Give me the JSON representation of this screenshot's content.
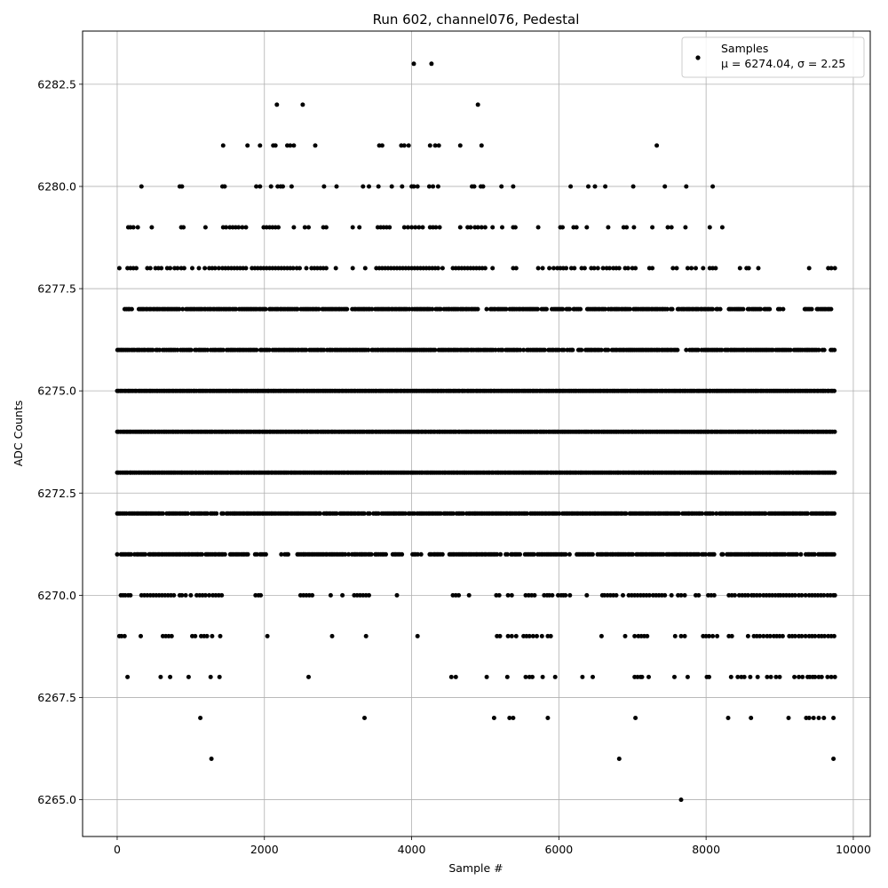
{
  "chart_data": {
    "type": "scatter",
    "title": "Run 602, channel076, Pedestal",
    "xlabel": "Sample #",
    "ylabel": "ADC Counts",
    "xlim": [
      -470,
      10230
    ],
    "ylim": [
      6264.1,
      6283.8
    ],
    "x_ticks": [
      "0",
      "2000",
      "4000",
      "6000",
      "8000",
      "10000"
    ],
    "x_tick_values": [
      0,
      2000,
      4000,
      6000,
      8000,
      10000
    ],
    "y_ticks": [
      "6265.0",
      "6267.5",
      "6270.0",
      "6272.5",
      "6275.0",
      "6277.5",
      "6280.0",
      "6282.5"
    ],
    "y_tick_values": [
      6265.0,
      6267.5,
      6270.0,
      6272.5,
      6275.0,
      6277.5,
      6280.0,
      6282.5
    ],
    "grid": true,
    "legend_position": "top-right",
    "marker_color": "#000000",
    "sample_count": 9750,
    "series": [
      {
        "name": "Samples",
        "stat_label": "μ = 6274.04, σ = 2.25",
        "levels": [
          {
            "y": 6283,
            "x": [
              4030,
              4270
            ]
          },
          {
            "y": 6282,
            "x": [
              2170,
              2520,
              4900
            ]
          },
          {
            "y": 6281,
            "x": [
              1440,
              1770,
              1940,
              2120,
              2150,
              2310,
              2350,
              2400,
              2690,
              3560,
              3600,
              3860,
              3900,
              3960,
              4250,
              4320,
              4370,
              4660,
              4950,
              7330
            ]
          },
          {
            "y": 6280,
            "x": [
              330,
              850,
              880,
              1430,
              1460,
              1890,
              1940,
              2090,
              2180,
              2220,
              2250,
              2370,
              2810,
              2980,
              3340,
              3420,
              3550,
              3730,
              3870,
              4000,
              4030,
              4080,
              4240,
              4290,
              4360,
              4820,
              4850,
              4940,
              4970,
              5220,
              5380,
              6160,
              6400,
              6490,
              6630,
              7010,
              7440,
              7730,
              8090
            ]
          },
          {
            "y": 6279,
            "x": [
              150,
              180,
              220,
              280,
              470,
              870,
              900,
              1200,
              1440,
              1480,
              1530,
              1570,
              1610,
              1650,
              1700,
              1750,
              1990,
              2030,
              2070,
              2110,
              2150,
              2190,
              2400,
              2550,
              2600,
              2800,
              2840,
              3200,
              3290,
              3540,
              3580,
              3620,
              3660,
              3700,
              3900,
              3950,
              4000,
              4050,
              4100,
              4150,
              4250,
              4290,
              4330,
              4380,
              4660,
              4760,
              4800,
              4860,
              4900,
              4950,
              5000,
              5100,
              5230,
              5380,
              5410,
              5720,
              6020,
              6050,
              6200,
              6240,
              6380,
              6670,
              6880,
              6920,
              7020,
              7270,
              7480,
              7530,
              7720,
              8050,
              8220
            ]
          },
          {
            "y": 6278,
            "x": [
              30,
              140,
              180,
              220,
              260,
              410,
              450,
              520,
              560,
              600,
              680,
              720,
              780,
              820,
              870,
              910,
              1020,
              1110,
              1190,
              1250,
              1290,
              1330,
              1380,
              1430,
              1470,
              1510,
              1550,
              1590,
              1630,
              1670,
              1710,
              1750,
              1830,
              1870,
              1910,
              1950,
              1990,
              2030,
              2070,
              2110,
              2150,
              2190,
              2230,
              2270,
              2310,
              2350,
              2390,
              2440,
              2480,
              2570,
              2640,
              2680,
              2720,
              2760,
              2800,
              2840,
              2970,
              3200,
              3370,
              3520,
              3560,
              3600,
              3640,
              3680,
              3720,
              3760,
              3800,
              3840,
              3880,
              3920,
              3960,
              4000,
              4040,
              4080,
              4120,
              4160,
              4200,
              4240,
              4280,
              4320,
              4360,
              4420,
              4560,
              4600,
              4640,
              4680,
              4720,
              4760,
              4800,
              4840,
              4880,
              4920,
              4960,
              5000,
              5100,
              5380,
              5420,
              5720,
              5780,
              5870,
              5930,
              5980,
              6020,
              6060,
              6100,
              6170,
              6210,
              6310,
              6350,
              6440,
              6480,
              6530,
              6600,
              6650,
              6690,
              6740,
              6780,
              6820,
              6900,
              6940,
              7000,
              7040,
              7230,
              7270,
              7550,
              7600,
              7750,
              7800,
              7860,
              7960,
              8050,
              8090,
              8130,
              8460,
              8550,
              8580,
              8710,
              9400,
              9660,
              9700,
              9750
            ]
          },
          {
            "y": 6277,
            "gaps": [
              [
                210,
                280
              ],
              [
                3140,
                3190
              ],
              [
                4920,
                5010
              ],
              [
                5840,
                5900
              ],
              [
                7550,
                7590
              ],
              [
                8200,
                8300
              ],
              [
                8520,
                8560
              ],
              [
                8870,
                8960
              ],
              [
                9100,
                9330
              ],
              [
                9450,
                9500
              ]
            ],
            "range": [
              100,
              9720
            ]
          },
          {
            "y": 6276,
            "gaps": [
              [
                7630,
                7680
              ],
              [
                9620,
                9680
              ]
            ],
            "range": [
              0,
              9750
            ]
          },
          {
            "y": 6275,
            "gaps": [],
            "range": [
              0,
              9750
            ]
          },
          {
            "y": 6274,
            "gaps": [],
            "range": [
              0,
              9750
            ]
          },
          {
            "y": 6273,
            "gaps": [],
            "range": [
              0,
              9750
            ]
          },
          {
            "y": 6272,
            "gaps": [],
            "range": [
              0,
              9750
            ]
          },
          {
            "y": 6271,
            "gaps": [
              [
                1500,
                1530
              ],
              [
                1800,
                1860
              ],
              [
                2030,
                2200
              ],
              [
                2350,
                2440
              ],
              [
                3660,
                3720
              ],
              [
                3880,
                4000
              ],
              [
                4140,
                4240
              ],
              [
                4430,
                4490
              ],
              [
                5230,
                5270
              ],
              [
                5670,
                5710
              ],
              [
                6150,
                6230
              ],
              [
                6470,
                6520
              ],
              [
                8130,
                8190
              ],
              [
                9310,
                9350
              ]
            ],
            "range": [
              0,
              9750
            ]
          },
          {
            "y": 6270,
            "x": [
              50,
              80,
              110,
              150,
              180,
              330,
              370,
              410,
              450,
              490,
              530,
              570,
              610,
              650,
              690,
              730,
              770,
              850,
              880,
              930,
              1000,
              1080,
              1120,
              1160,
              1200,
              1250,
              1300,
              1340,
              1380,
              1420,
              1880,
              1920,
              1950,
              2490,
              2530,
              2570,
              2610,
              2650,
              2900,
              3060,
              3220,
              3260,
              3300,
              3340,
              3380,
              3420,
              3800,
              4560,
              4600,
              4640,
              4780,
              5150,
              5190,
              5310,
              5360,
              5550,
              5590,
              5630,
              5670,
              5800,
              5840,
              5870,
              5910,
              5990,
              6030,
              6060,
              6090,
              6150,
              6380,
              6590,
              6620,
              6660,
              6700,
              6740,
              6780,
              6870,
              6950,
              6990,
              7030,
              7070,
              7110,
              7150,
              7190,
              7230,
              7280,
              7320,
              7360,
              7400,
              7440,
              7530,
              7620,
              7660,
              7710,
              7860,
              7900,
              8030,
              8070,
              8110,
              8310,
              8350,
              8390,
              8450,
              8490,
              8530,
              8570,
              8620,
              8650,
              8690,
              8730,
              8780,
              8820,
              8860,
              8900,
              8940,
              8980,
              9010,
              9050,
              9090,
              9130,
              9170,
              9210,
              9260,
              9300,
              9350,
              9400,
              9440,
              9480,
              9520,
              9560,
              9600,
              9650,
              9690,
              9730,
              9750
            ]
          },
          {
            "y": 6269,
            "x": [
              30,
              60,
              100,
              320,
              620,
              660,
              700,
              740,
              1020,
              1060,
              1140,
              1180,
              1220,
              1290,
              1400,
              2040,
              2920,
              3380,
              4080,
              5160,
              5200,
              5310,
              5360,
              5420,
              5520,
              5560,
              5600,
              5650,
              5700,
              5770,
              5850,
              5890,
              6580,
              6900,
              7030,
              7080,
              7120,
              7160,
              7200,
              7580,
              7660,
              7710,
              7960,
              8000,
              8040,
              8090,
              8150,
              8310,
              8350,
              8570,
              8650,
              8690,
              8730,
              8780,
              8830,
              8870,
              8920,
              8960,
              9000,
              9040,
              9130,
              9170,
              9210,
              9260,
              9300,
              9350,
              9400,
              9440,
              9480,
              9530,
              9570,
              9610,
              9660,
              9700,
              9740
            ]
          },
          {
            "y": 6268,
            "x": [
              140,
              590,
              720,
              970,
              1270,
              1390,
              2600,
              4540,
              4600,
              5020,
              5300,
              5550,
              5600,
              5640,
              5780,
              5950,
              6320,
              6460,
              7030,
              7070,
              7110,
              7130,
              7220,
              7570,
              7750,
              8010,
              8040,
              8340,
              8430,
              8480,
              8520,
              8600,
              8700,
              8830,
              8880,
              8950,
              9000,
              9200,
              9260,
              9310,
              9380,
              9410,
              9450,
              9480,
              9530,
              9570,
              9650,
              9700,
              9750
            ]
          },
          {
            "y": 6267,
            "x": [
              1130,
              3360,
              5120,
              5330,
              5380,
              5850,
              7040,
              8300,
              8610,
              9120,
              9360,
              9400,
              9460,
              9530,
              9600,
              9730
            ]
          },
          {
            "y": 6266,
            "x": [
              1280,
              6820,
              9730
            ]
          },
          {
            "y": 6265,
            "x": [
              7660
            ]
          }
        ]
      }
    ]
  }
}
